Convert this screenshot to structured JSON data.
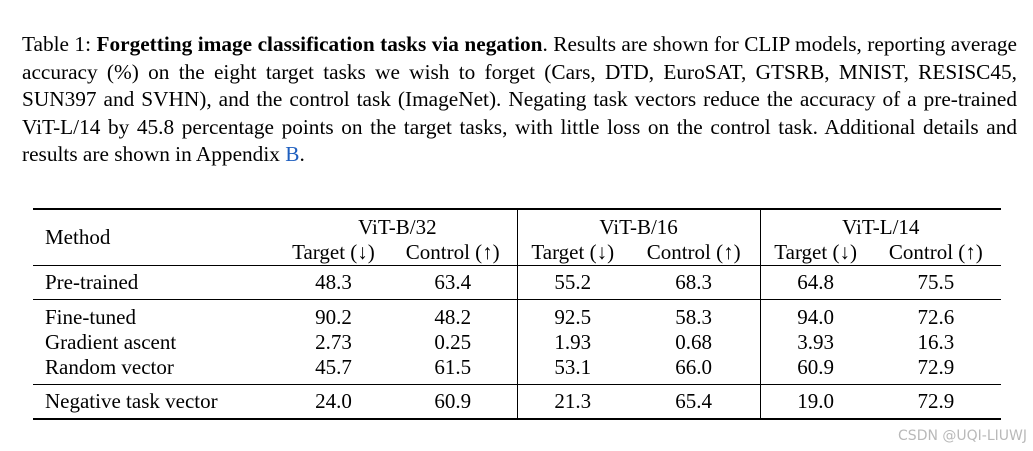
{
  "caption": {
    "label": "Table 1:",
    "bold_title": "Forgetting image classification tasks via negation",
    "text": ". Results are shown for CLIP models, reporting average accuracy (%) on the eight target tasks we wish to forget (Cars, DTD, EuroSAT, GTSRB, MNIST, RESISC45, SUN397 and SVHN), and the control task (ImageNet). Negating task vectors reduce the accuracy of a pre-trained ViT-L/14 by 45.8 percentage points on the target tasks, with little loss on the control task. Additional details and results are shown in Appendix ",
    "ref": "B",
    "end": "."
  },
  "table": {
    "method_header": "Method",
    "groups": [
      "ViT-B/32",
      "ViT-B/16",
      "ViT-L/14"
    ],
    "subheaders": [
      "Target (↓)",
      "Control (↑)",
      "Target (↓)",
      "Control (↑)",
      "Target (↓)",
      "Control (↑)"
    ],
    "rows": [
      {
        "method": "Pre-trained",
        "values": [
          "48.3",
          "63.4",
          "55.2",
          "68.3",
          "64.8",
          "75.5"
        ]
      },
      {
        "method": "Fine-tuned",
        "values": [
          "90.2",
          "48.2",
          "92.5",
          "58.3",
          "94.0",
          "72.6"
        ]
      },
      {
        "method": "Gradient ascent",
        "values": [
          "2.73",
          "0.25",
          "1.93",
          "0.68",
          "3.93",
          "16.3"
        ]
      },
      {
        "method": "Random vector",
        "values": [
          "45.7",
          "61.5",
          "53.1",
          "66.0",
          "60.9",
          "72.9"
        ]
      },
      {
        "method": "Negative task vector",
        "values": [
          "24.0",
          "60.9",
          "21.3",
          "65.4",
          "19.0",
          "72.9"
        ]
      }
    ]
  },
  "watermark": "CSDN @UQI-LIUWJ"
}
